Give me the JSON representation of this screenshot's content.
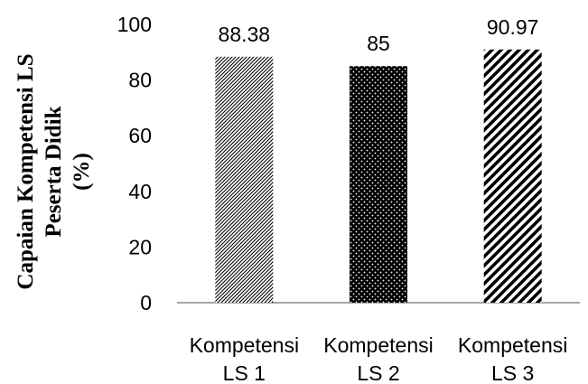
{
  "chart_data": {
    "type": "bar",
    "title": "",
    "xlabel": "",
    "ylabel_lines": [
      "Capaian Kompetensi LS",
      "Peserta Didik",
      "(%)"
    ],
    "categories": [
      {
        "lines": [
          "Kompetensi",
          "LS 1"
        ]
      },
      {
        "lines": [
          "Kompetensi",
          "LS 2"
        ]
      },
      {
        "lines": [
          "Kompetensi",
          "LS 3"
        ]
      }
    ],
    "values": [
      88.38,
      85,
      90.97
    ],
    "data_labels": [
      "88.38",
      "85",
      "90.97"
    ],
    "bar_patterns": [
      "light-diagonal-hatch",
      "dotted-black",
      "wide-diagonal-stripes"
    ],
    "ylim": [
      0,
      100
    ],
    "y_ticks": [
      0,
      20,
      40,
      60,
      80,
      100
    ],
    "grid": false,
    "legend": "none",
    "colors": {
      "axis": "#888888",
      "bar_dark": "#000000",
      "bar_light": "#ffffff"
    }
  }
}
